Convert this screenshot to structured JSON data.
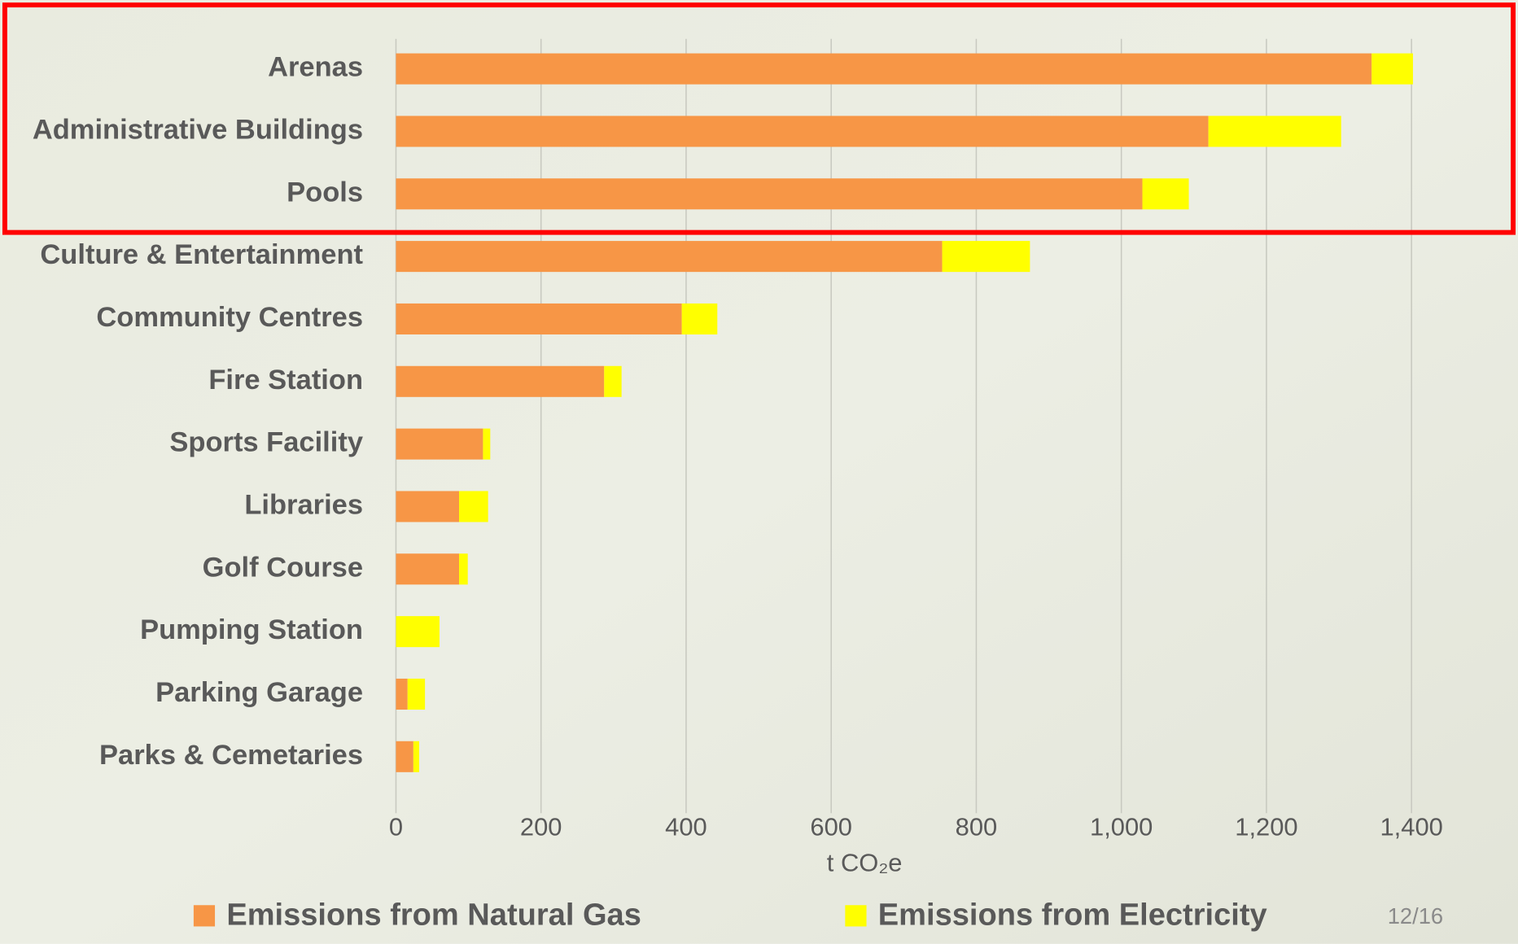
{
  "chart_data": {
    "type": "stacked-barh",
    "categories": [
      "Arenas",
      "Administrative Buildings",
      "Pools",
      "Culture & Entertainment",
      "Community Centres",
      "Fire Station",
      "Sports Facility",
      "Libraries",
      "Golf Course",
      "Pumping Station",
      "Parking Garage",
      "Parks & Cemetaries"
    ],
    "series": [
      {
        "name": "Emissions from Natural Gas",
        "color": "#f79646",
        "values": [
          1345,
          1120,
          1029,
          753,
          394,
          287,
          120,
          87,
          87,
          0,
          16,
          24
        ]
      },
      {
        "name": "Emissions from Electricity",
        "color": "#ffff00",
        "values": [
          57,
          183,
          64,
          121,
          49,
          24,
          10,
          40,
          12,
          60,
          24,
          8
        ]
      }
    ],
    "xlabel": "t CO₂e",
    "xlim": [
      0,
      1400
    ],
    "xticks": [
      0,
      200,
      400,
      600,
      800,
      {
        "value": 1000,
        "label": "1,000"
      },
      {
        "value": 1200,
        "label": "1,200"
      },
      {
        "value": 1400,
        "label": "1,400"
      }
    ],
    "grid": true,
    "legend": "bottom"
  },
  "page_number": "12/16"
}
